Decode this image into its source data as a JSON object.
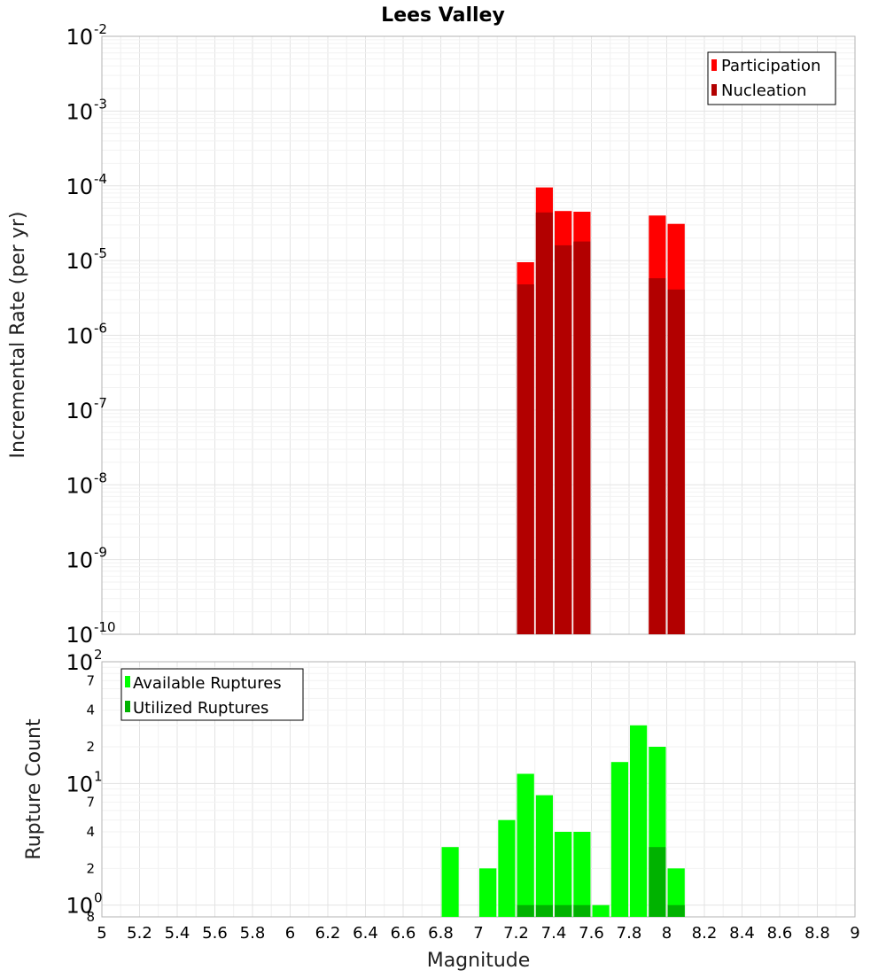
{
  "chart_data": [
    {
      "type": "bar",
      "title": "Lees Valley",
      "xlabel": "Magnitude",
      "ylabel": "Incremental Rate (per yr)",
      "yscale": "log",
      "ylim": [
        1e-10,
        0.01
      ],
      "xlim": [
        5,
        9
      ],
      "y_ticks": [
        {
          "base": "10",
          "exp": "-2",
          "value": 0.01
        },
        {
          "base": "10",
          "exp": "-3",
          "value": 0.001
        },
        {
          "base": "10",
          "exp": "-4",
          "value": 0.0001
        },
        {
          "base": "10",
          "exp": "-5",
          "value": 1e-05
        },
        {
          "base": "10",
          "exp": "-6",
          "value": 1e-06
        },
        {
          "base": "10",
          "exp": "-7",
          "value": 1e-07
        },
        {
          "base": "10",
          "exp": "-8",
          "value": 1e-08
        },
        {
          "base": "10",
          "exp": "-9",
          "value": 1e-09
        },
        {
          "base": "10",
          "exp": "-10",
          "value": 1e-10
        }
      ],
      "legend": [
        {
          "label": "Participation",
          "color": "#ff0000"
        },
        {
          "label": "Nucleation",
          "color": "#b20000"
        }
      ],
      "legend_position": "top-right",
      "bar_width": 0.1,
      "x": [
        7.25,
        7.35,
        7.45,
        7.55,
        7.95,
        8.05
      ],
      "series": [
        {
          "name": "Participation",
          "color": "#ff0000",
          "values": [
            9.5e-06,
            9.5e-05,
            4.6e-05,
            4.5e-05,
            4e-05,
            3.1e-05
          ]
        },
        {
          "name": "Nucleation",
          "color": "#b20000",
          "values": [
            4.8e-06,
            4.4e-05,
            1.6e-05,
            1.8e-05,
            5.8e-06,
            4.1e-06
          ]
        }
      ]
    },
    {
      "type": "bar",
      "title": "",
      "xlabel": "Magnitude",
      "ylabel": "Rupture Count",
      "yscale": "log",
      "ylim": [
        0.8,
        100
      ],
      "xlim": [
        5,
        9
      ],
      "x_ticks": [
        "5",
        "5.2",
        "5.4",
        "5.6",
        "5.8",
        "6",
        "6.2",
        "6.4",
        "6.6",
        "6.8",
        "7",
        "7.2",
        "7.4",
        "7.6",
        "7.8",
        "8",
        "8.2",
        "8.4",
        "8.6",
        "8.8",
        "9"
      ],
      "y_major_ticks": [
        {
          "base": "10",
          "exp": "2",
          "value": 100
        },
        {
          "base": "10",
          "exp": "1",
          "value": 10
        },
        {
          "base": "10",
          "exp": "0",
          "value": 1
        }
      ],
      "y_minor_ticks": [
        {
          "label": "7",
          "value": 70
        },
        {
          "label": "4",
          "value": 40
        },
        {
          "label": "2",
          "value": 20
        },
        {
          "label": "7",
          "value": 7
        },
        {
          "label": "4",
          "value": 4
        },
        {
          "label": "2",
          "value": 2
        },
        {
          "label": "8",
          "value": 0.8
        }
      ],
      "legend": [
        {
          "label": "Available Ruptures",
          "color": "#00ff00"
        },
        {
          "label": "Utilized Ruptures",
          "color": "#00b200"
        }
      ],
      "legend_position": "top-left",
      "bar_width": 0.1,
      "x": [
        6.85,
        7.05,
        7.15,
        7.25,
        7.35,
        7.45,
        7.55,
        7.65,
        7.75,
        7.85,
        7.95,
        8.05
      ],
      "series": [
        {
          "name": "Available Ruptures",
          "color": "#00ff00",
          "values": [
            3,
            2,
            5,
            12,
            8,
            4,
            4,
            1,
            15,
            30,
            20,
            2
          ]
        },
        {
          "name": "Utilized Ruptures",
          "color": "#00b200",
          "values": [
            0,
            0,
            0,
            1,
            1,
            1,
            1,
            0,
            0,
            0,
            3,
            1
          ]
        }
      ]
    }
  ]
}
